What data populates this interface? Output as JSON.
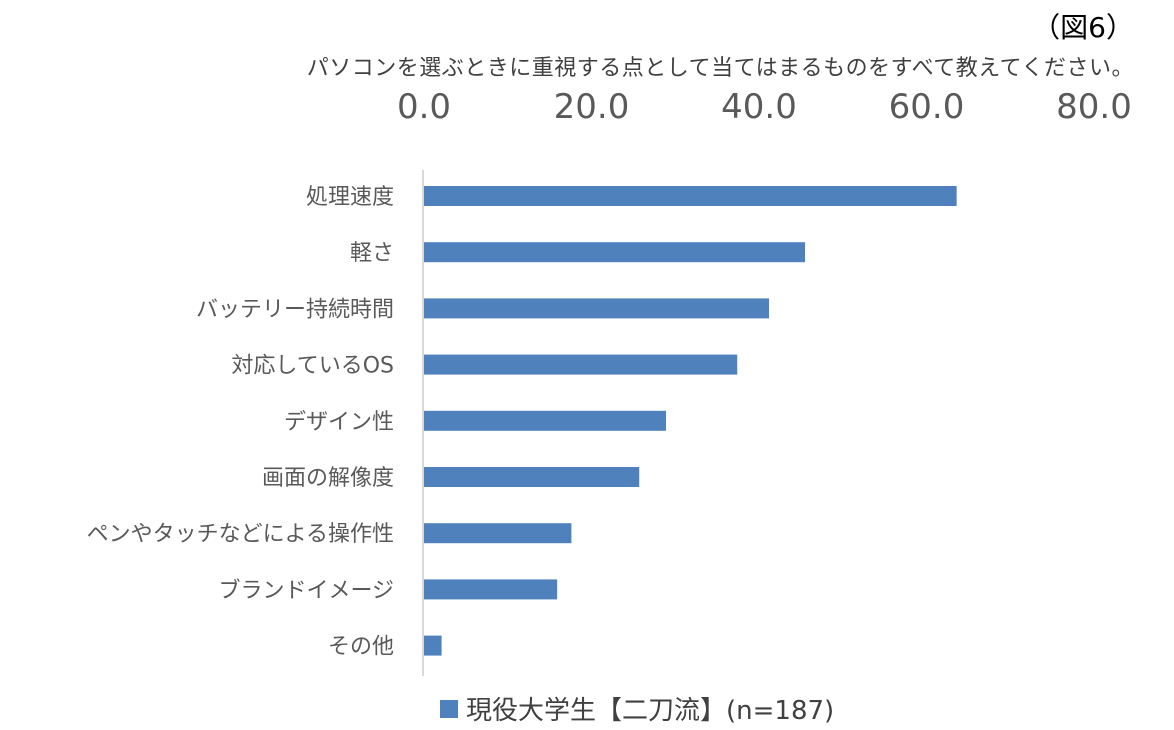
{
  "figure_label": "（図6）",
  "title": "パソコンを選ぶときに重視する点として当てはまるものをすべて教えてください。",
  "colors": {
    "bar": "#4F81BD",
    "axis": "#D9D9D9"
  },
  "chart_data": {
    "type": "bar",
    "orientation": "horizontal",
    "categories": [
      "処理速度",
      "軽さ",
      "バッテリー持続時間",
      "対応しているOS",
      "デザイン性",
      "画面の解像度",
      "ペンやタッチなどによる操作性",
      "ブランドイメージ",
      "その他"
    ],
    "series": [
      {
        "name": "現役大学生【二刀流】(n=187)",
        "values": [
          63.6,
          45.5,
          41.2,
          37.4,
          28.9,
          25.7,
          17.6,
          15.9,
          2.1
        ]
      }
    ],
    "xlim": [
      0,
      80
    ],
    "ticks": [
      "0.0",
      "20.0",
      "40.0",
      "60.0",
      "80.0"
    ],
    "tick_positions": "top",
    "grid": false,
    "legend": "bottom"
  }
}
